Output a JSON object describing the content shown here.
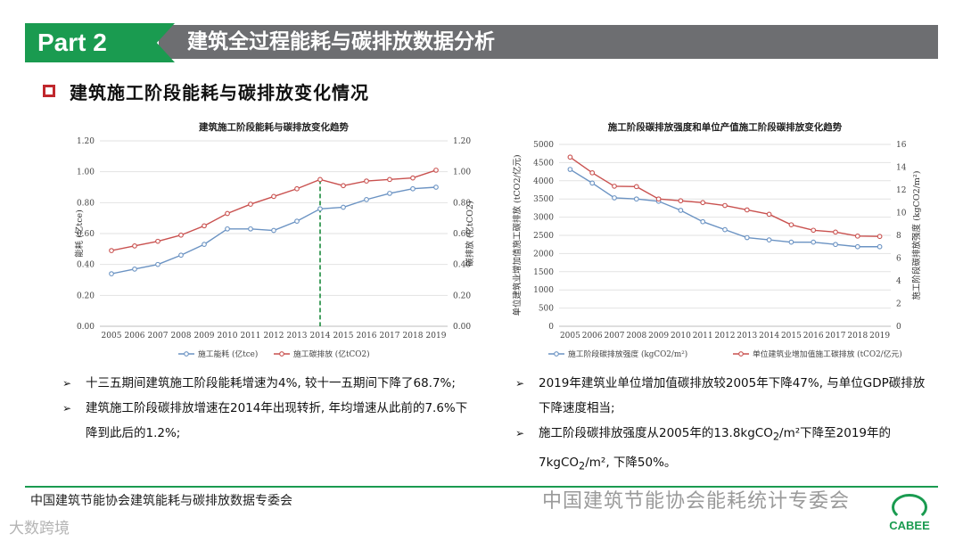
{
  "header": {
    "part_label": "Part 2",
    "title": "建筑全过程能耗与碳排放数据分析"
  },
  "section": {
    "title": "建筑施工阶段能耗与碳排放变化情况"
  },
  "colors": {
    "green": "#1a9b50",
    "blue_series": "#6b93c3",
    "red_series": "#c9514f",
    "accent_red": "#c0282d"
  },
  "chart_data": [
    {
      "type": "line",
      "title": "建筑施工阶段能耗与碳排放变化趋势",
      "x": [
        "2005",
        "2006",
        "2007",
        "2008",
        "2009",
        "2010",
        "2011",
        "2012",
        "2013",
        "2014",
        "2015",
        "2016",
        "2017",
        "2018",
        "2019"
      ],
      "ylabel_left": "能耗 (亿tce)",
      "ylabel_right": "碳排放 (亿tCO2)",
      "ylim_left": [
        0,
        1.2
      ],
      "ylim_right": [
        0,
        1.2
      ],
      "yticks_left": [
        "0.00",
        "0.20",
        "0.40",
        "0.60",
        "0.80",
        "1.00",
        "1.20"
      ],
      "yticks_right": [
        "0.00",
        "0.20",
        "0.40",
        "0.60",
        "0.80",
        "1.00",
        "1.20"
      ],
      "grid": true,
      "marker_line_x": "2014",
      "legend_position": "bottom",
      "series": [
        {
          "name": "施工能耗 (亿tce)",
          "axis": "left",
          "color": "#6b93c3",
          "values": [
            0.34,
            0.37,
            0.4,
            0.46,
            0.53,
            0.63,
            0.63,
            0.62,
            0.68,
            0.76,
            0.77,
            0.82,
            0.86,
            0.89,
            0.9
          ]
        },
        {
          "name": "施工碳排放 (亿tCO2)",
          "axis": "right",
          "color": "#c9514f",
          "values": [
            0.49,
            0.52,
            0.55,
            0.59,
            0.65,
            0.73,
            0.79,
            0.84,
            0.89,
            0.95,
            0.91,
            0.94,
            0.95,
            0.96,
            1.01
          ]
        }
      ]
    },
    {
      "type": "line",
      "title": "施工阶段碳排放强度和单位产值施工阶段碳排放变化趋势",
      "x": [
        "2005",
        "2006",
        "2007",
        "2008",
        "2009",
        "2010",
        "2011",
        "2012",
        "2013",
        "2014",
        "2015",
        "2016",
        "2017",
        "2018",
        "2019"
      ],
      "ylabel_left": "单位建筑业增加值施工碳排放 (tCO2/亿元)",
      "ylabel_right": "施工阶段碳排放强度 (kgCO2/m²)",
      "ylim_left": [
        0,
        5000
      ],
      "ylim_right": [
        0,
        16
      ],
      "yticks_left": [
        "0",
        "500",
        "1000",
        "1500",
        "2000",
        "2500",
        "3000",
        "3500",
        "4000",
        "4500",
        "5000"
      ],
      "yticks_right": [
        "0",
        "2",
        "4",
        "6",
        "8",
        "10",
        "12",
        "14",
        "16"
      ],
      "grid": true,
      "legend_position": "bottom",
      "series": [
        {
          "name": "施工阶段碳排放强度 (kgCO2/m²)",
          "axis": "right",
          "color": "#6b93c3",
          "values": [
            13.8,
            12.6,
            11.3,
            11.2,
            11.0,
            10.2,
            9.2,
            8.5,
            7.8,
            7.6,
            7.4,
            7.4,
            7.2,
            7.0,
            7.0
          ]
        },
        {
          "name": "单位建筑业增加值施工碳排放 (tCO2/亿元)",
          "axis": "left",
          "color": "#c9514f",
          "values": [
            4650,
            4220,
            3850,
            3840,
            3500,
            3450,
            3400,
            3320,
            3200,
            3080,
            2790,
            2640,
            2590,
            2480,
            2470
          ]
        }
      ]
    }
  ],
  "bullets_left": [
    "十三五期间建筑施工阶段能耗增速为4%, 较十一五期间下降了68.7%;",
    "建筑施工阶段碳排放增速在2014年出现转折, 年均增速从此前的7.6%下降到此后的1.2%;"
  ],
  "bullets_right": [
    {
      "text": "2019年建筑业单位增加值碳排放较2005年下降47%, 与单位GDP碳排放下降速度相当;"
    },
    {
      "pre": "施工阶段碳排放强度从2005年的13.8kgCO",
      "sub": "2",
      "post": "/m²下降至2019年的7kgCO",
      "sub2": "2",
      "post2": "/m², 下降50%。"
    }
  ],
  "footer": {
    "org": "中国建筑节能协会建筑能耗与碳排放数据专委会",
    "watermark": "中国建筑节能协会能耗统计专委会",
    "watermark2": "大数跨境",
    "logo": "CABEE"
  }
}
